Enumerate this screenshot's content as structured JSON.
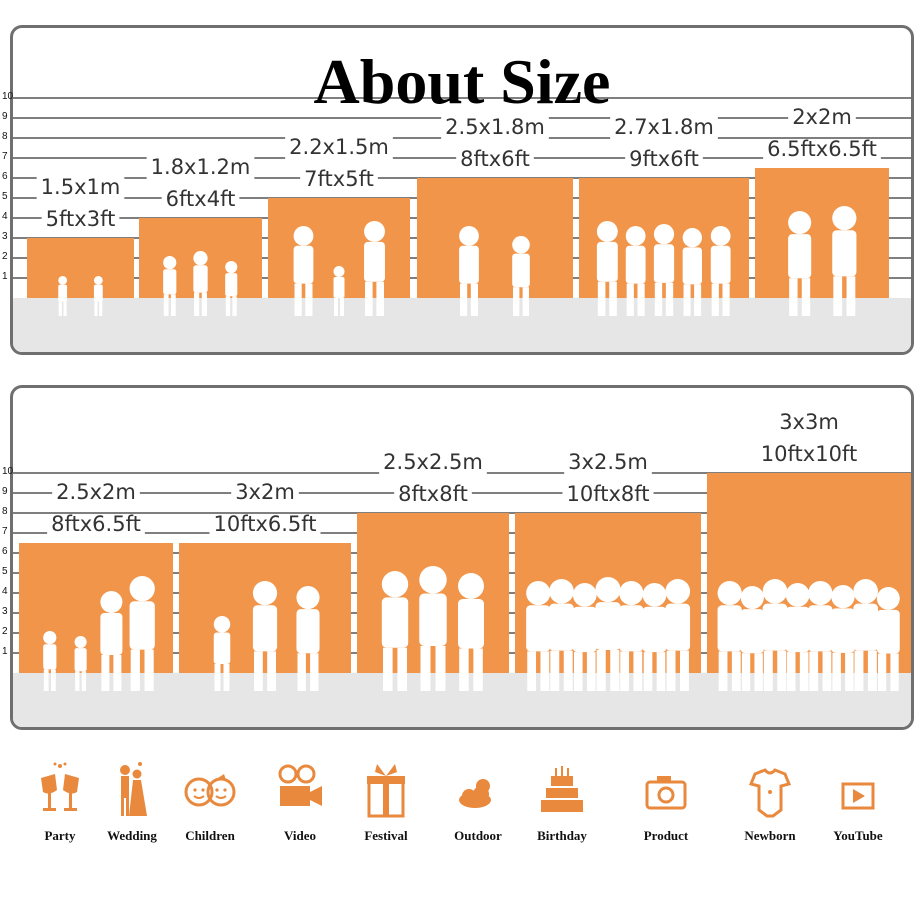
{
  "title": "About Size",
  "scale_numbers": [
    "10",
    "9",
    "8",
    "7",
    "6",
    "5",
    "4",
    "3",
    "2",
    "1"
  ],
  "colors": {
    "orange": "#f0954a",
    "floor": "#e6e6e6",
    "border": "#6f6f6f",
    "icon": "#e8893e"
  },
  "row1": [
    {
      "metric": "1.5x1m",
      "imperial": "5ftx3ft",
      "scene": "children-sitting"
    },
    {
      "metric": "1.8x1.2m",
      "imperial": "6ftx4ft",
      "scene": "children-running"
    },
    {
      "metric": "2.2x1.5m",
      "imperial": "7ftx5ft",
      "scene": "family"
    },
    {
      "metric": "2.5x1.8m",
      "imperial": "8ftx6ft",
      "scene": "wedding-couple"
    },
    {
      "metric": "2.7x1.8m",
      "imperial": "9ftx6ft",
      "scene": "friends-group"
    },
    {
      "metric": "2x2m",
      "imperial": "6.5ftx6.5ft",
      "scene": "couple-with-pets"
    }
  ],
  "row2": [
    {
      "metric": "2.5x2m",
      "imperial": "8ftx6.5ft",
      "scene": "family-with-kids"
    },
    {
      "metric": "3x2m",
      "imperial": "10ftx6.5ft",
      "scene": "parents-lifting-child"
    },
    {
      "metric": "2.5x2.5m",
      "imperial": "8ftx8ft",
      "scene": "three-adults"
    },
    {
      "metric": "3x2.5m",
      "imperial": "10ftx8ft",
      "scene": "large-group"
    },
    {
      "metric": "3x3m",
      "imperial": "10ftx10ft",
      "scene": "graduation"
    }
  ],
  "icons": [
    {
      "label": "Party",
      "icon": "champagne-glasses-icon"
    },
    {
      "label": "Wedding",
      "icon": "wedding-couple-icon"
    },
    {
      "label": "Children",
      "icon": "children-faces-icon"
    },
    {
      "label": "Video",
      "icon": "video-camera-icon"
    },
    {
      "label": "Festival",
      "icon": "gift-box-icon"
    },
    {
      "label": "Outdoor",
      "icon": "sun-cloud-icon"
    },
    {
      "label": "Birthday",
      "icon": "birthday-cake-icon"
    },
    {
      "label": "Product",
      "icon": "photo-camera-icon"
    },
    {
      "label": "Newborn",
      "icon": "baby-onesie-icon"
    },
    {
      "label": "YouTube",
      "icon": "play-button-icon"
    }
  ]
}
